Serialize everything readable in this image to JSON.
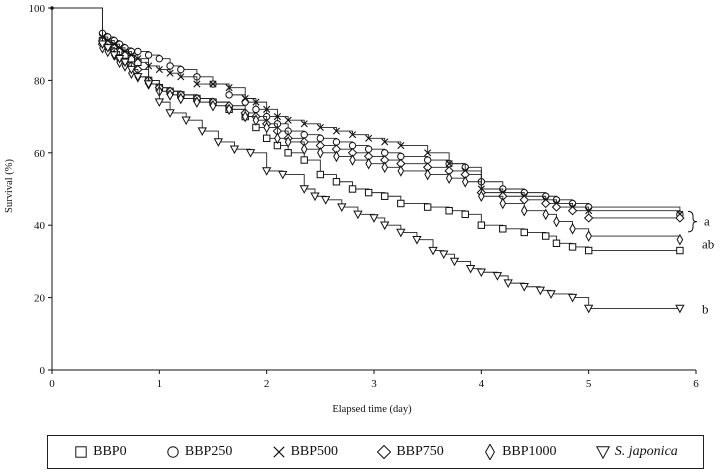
{
  "chart_data": {
    "type": "line",
    "title": "",
    "xlabel": "Elapsed time (day)",
    "ylabel": "Survival (%)",
    "xlim": [
      0,
      6
    ],
    "ylim": [
      0,
      100
    ],
    "xticks": [
      "0",
      "1",
      "2",
      "3",
      "4",
      "5",
      "6"
    ],
    "yticks": [
      "0",
      "20",
      "40",
      "60",
      "80",
      "100"
    ],
    "grid": false,
    "legend_position": "bottom",
    "series": [
      {
        "name": "BBP0",
        "marker": "square",
        "x": [
          0,
          0.42,
          0.47,
          0.52,
          0.58,
          0.63,
          0.68,
          0.74,
          0.8,
          0.9,
          1.0,
          1.1,
          1.2,
          1.35,
          1.5,
          1.65,
          1.8,
          1.9,
          2.0,
          2.1,
          2.2,
          2.35,
          2.5,
          2.65,
          2.8,
          2.95,
          3.1,
          3.25,
          3.5,
          3.7,
          3.85,
          4.0,
          4.2,
          4.4,
          4.6,
          4.7,
          4.85,
          5.0,
          5.85
        ],
        "y": [
          100,
          100,
          91,
          90,
          89,
          88,
          87,
          86,
          85,
          80,
          78,
          77,
          76,
          75,
          74,
          72,
          70,
          67,
          64,
          62,
          60,
          58,
          54,
          52,
          50,
          49,
          48,
          46,
          45,
          44,
          43,
          40,
          39,
          38,
          37,
          35,
          34,
          33,
          33
        ]
      },
      {
        "name": "BBP250",
        "marker": "circle",
        "x": [
          0,
          0.42,
          0.47,
          0.52,
          0.58,
          0.63,
          0.68,
          0.74,
          0.8,
          0.9,
          1.0,
          1.1,
          1.2,
          1.35,
          1.5,
          1.65,
          1.8,
          1.9,
          2.0,
          2.1,
          2.2,
          2.35,
          2.5,
          2.65,
          2.8,
          2.95,
          3.1,
          3.25,
          3.5,
          3.7,
          3.85,
          4.0,
          4.2,
          4.4,
          4.6,
          4.7,
          4.85,
          5.0,
          5.85
        ],
        "y": [
          100,
          100,
          93,
          92,
          91,
          90,
          89,
          88,
          88,
          87,
          86,
          84,
          83,
          81,
          79,
          76,
          74,
          72,
          70,
          68,
          66,
          65,
          64,
          63,
          62,
          61,
          60,
          59,
          58,
          57,
          56,
          52,
          50,
          49,
          48,
          47,
          46,
          45,
          43
        ]
      },
      {
        "name": "BBP500",
        "marker": "x",
        "x": [
          0,
          0.42,
          0.47,
          0.52,
          0.58,
          0.63,
          0.68,
          0.74,
          0.8,
          0.9,
          1.0,
          1.1,
          1.2,
          1.35,
          1.5,
          1.65,
          1.8,
          1.9,
          2.0,
          2.1,
          2.2,
          2.35,
          2.5,
          2.65,
          2.8,
          2.95,
          3.1,
          3.25,
          3.5,
          3.7,
          3.85,
          4.0,
          4.2,
          4.4,
          4.6,
          4.7,
          4.85,
          5.0,
          5.85
        ],
        "y": [
          100,
          100,
          92,
          91,
          90,
          89,
          88,
          87,
          86,
          84,
          83,
          82,
          81,
          79,
          79,
          78,
          75,
          74,
          72,
          70,
          69,
          68,
          67,
          66,
          65,
          64,
          63,
          62,
          60,
          57,
          55,
          50,
          49,
          48,
          47,
          46,
          45,
          44,
          43
        ]
      },
      {
        "name": "BBP750",
        "marker": "diamond",
        "x": [
          0,
          0.42,
          0.47,
          0.52,
          0.58,
          0.63,
          0.68,
          0.74,
          0.8,
          0.9,
          1.0,
          1.1,
          1.2,
          1.35,
          1.5,
          1.65,
          1.8,
          1.9,
          2.0,
          2.1,
          2.2,
          2.35,
          2.5,
          2.65,
          2.8,
          2.95,
          3.1,
          3.25,
          3.5,
          3.7,
          3.85,
          4.0,
          4.2,
          4.4,
          4.6,
          4.7,
          4.85,
          5.0,
          5.85
        ],
        "y": [
          100,
          100,
          90,
          89,
          88,
          86,
          85,
          84,
          83,
          80,
          78,
          77,
          76,
          75,
          74,
          73,
          71,
          70,
          68,
          66,
          64,
          63,
          62,
          61,
          60,
          59,
          58,
          57,
          56,
          55,
          54,
          49,
          48,
          47,
          46,
          45,
          44,
          42,
          42
        ]
      },
      {
        "name": "BBP1000",
        "marker": "diamond-tall",
        "x": [
          0,
          0.42,
          0.47,
          0.52,
          0.58,
          0.63,
          0.68,
          0.74,
          0.8,
          0.9,
          1.0,
          1.1,
          1.2,
          1.35,
          1.5,
          1.65,
          1.8,
          1.9,
          2.0,
          2.1,
          2.2,
          2.35,
          2.5,
          2.65,
          2.8,
          2.95,
          3.1,
          3.25,
          3.5,
          3.7,
          3.85,
          4.0,
          4.2,
          4.4,
          4.6,
          4.7,
          4.85,
          5.0,
          5.85
        ],
        "y": [
          100,
          100,
          89,
          88,
          87,
          85,
          84,
          82,
          81,
          79,
          77,
          76,
          75,
          74,
          73,
          72,
          70,
          69,
          67,
          64,
          63,
          61,
          60,
          59,
          58,
          57,
          56,
          55,
          54,
          53,
          52,
          48,
          46,
          44,
          43,
          41,
          39,
          37,
          36
        ]
      },
      {
        "name": "S. japonica",
        "marker": "triangle-down",
        "x": [
          0,
          0.42,
          0.47,
          0.52,
          0.58,
          0.63,
          0.68,
          0.74,
          0.8,
          0.9,
          1.0,
          1.1,
          1.25,
          1.4,
          1.55,
          1.7,
          1.85,
          2.0,
          2.15,
          2.35,
          2.45,
          2.55,
          2.7,
          2.85,
          3.0,
          3.1,
          3.25,
          3.4,
          3.55,
          3.65,
          3.75,
          3.9,
          4.0,
          4.15,
          4.25,
          4.4,
          4.55,
          4.65,
          4.85,
          5.0,
          5.85
        ],
        "y": [
          100,
          100,
          90,
          89,
          87,
          86,
          85,
          83,
          81,
          79,
          74,
          71,
          69,
          66,
          63,
          61,
          60,
          55,
          54,
          50,
          48,
          47,
          45,
          43,
          42,
          40,
          38,
          36,
          33,
          32,
          30,
          28,
          27,
          26,
          24,
          23,
          22,
          21,
          20,
          17,
          17
        ]
      }
    ],
    "annotations": [
      {
        "text": "a",
        "bracket": [
          43,
          39
        ]
      },
      {
        "text": "ab",
        "y": 33
      },
      {
        "text": "b",
        "y": 15
      }
    ]
  }
}
